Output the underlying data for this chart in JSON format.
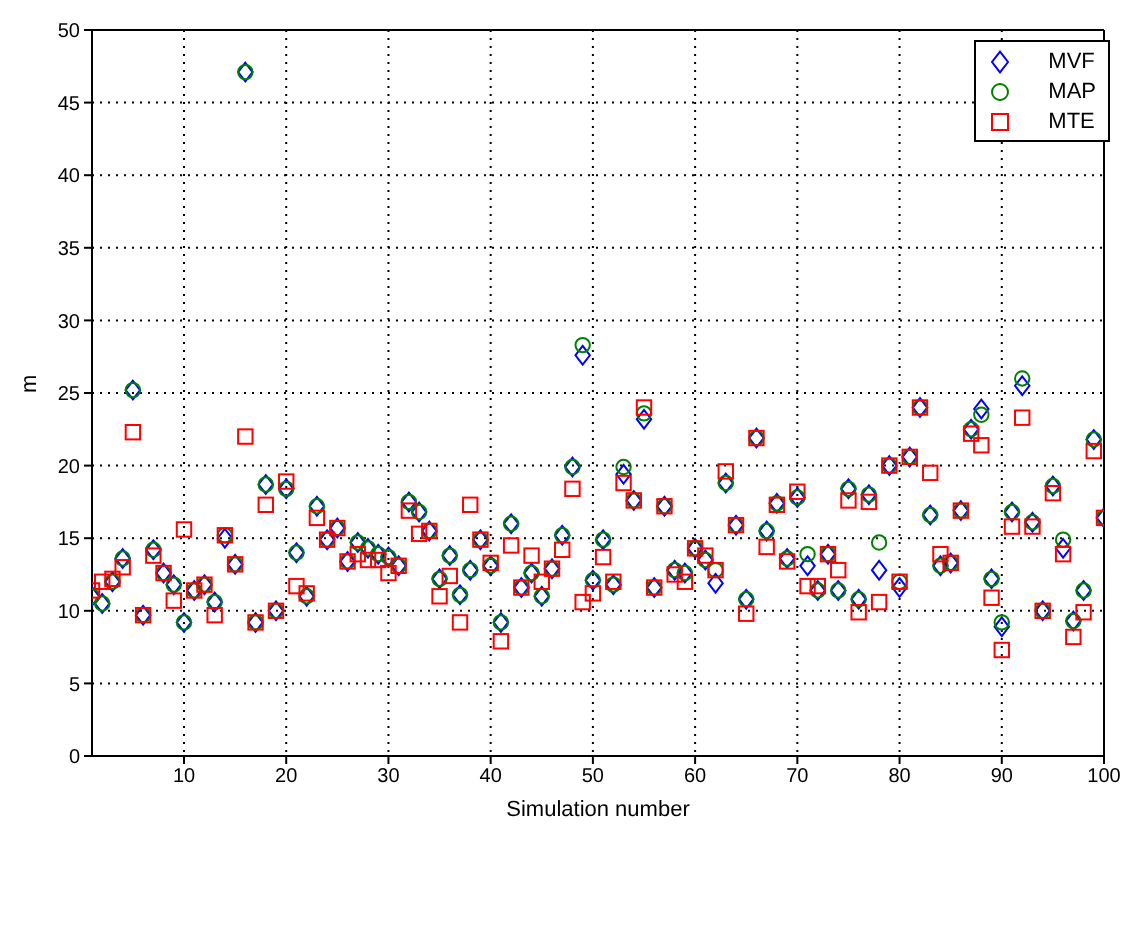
{
  "chart_data": {
    "type": "scatter",
    "xlabel": "Simulation number",
    "ylabel": "m",
    "x": [
      1,
      2,
      3,
      4,
      5,
      6,
      7,
      8,
      9,
      10,
      11,
      12,
      13,
      14,
      15,
      16,
      17,
      18,
      19,
      20,
      21,
      22,
      23,
      24,
      25,
      26,
      27,
      28,
      29,
      30,
      31,
      32,
      33,
      34,
      35,
      36,
      37,
      38,
      39,
      40,
      41,
      42,
      43,
      44,
      45,
      46,
      47,
      48,
      49,
      50,
      51,
      52,
      53,
      54,
      55,
      56,
      57,
      58,
      59,
      60,
      61,
      62,
      63,
      64,
      65,
      66,
      67,
      68,
      69,
      70,
      71,
      72,
      73,
      74,
      75,
      76,
      77,
      78,
      79,
      80,
      81,
      82,
      83,
      84,
      85,
      86,
      87,
      88,
      89,
      90,
      91,
      92,
      93,
      94,
      95,
      96,
      97,
      98,
      99,
      100
    ],
    "xlim": [
      1,
      100
    ],
    "xticks": [
      10,
      20,
      30,
      40,
      50,
      60,
      70,
      80,
      90,
      100
    ],
    "ylim": [
      0,
      50
    ],
    "yticks": [
      0,
      5,
      10,
      15,
      20,
      25,
      30,
      35,
      40,
      45,
      50
    ],
    "grid": true,
    "legend": "top right",
    "series": [
      {
        "name": "MVF",
        "color": "#0000ff",
        "marker": "diamond",
        "values": [
          11.0,
          10.5,
          12.0,
          13.6,
          25.2,
          9.7,
          14.2,
          12.6,
          11.8,
          9.2,
          11.4,
          11.8,
          10.6,
          15.0,
          13.2,
          47.1,
          9.2,
          18.7,
          10.0,
          18.4,
          14.0,
          11.0,
          17.2,
          14.9,
          15.7,
          13.4,
          14.7,
          14.3,
          13.9,
          13.7,
          13.1,
          17.5,
          16.8,
          15.5,
          12.2,
          13.8,
          11.1,
          12.8,
          14.9,
          13.1,
          9.2,
          16.0,
          11.6,
          12.6,
          11.0,
          12.9,
          15.2,
          19.9,
          27.6,
          12.1,
          14.9,
          11.8,
          19.4,
          17.6,
          23.2,
          11.6,
          17.2,
          12.8,
          12.6,
          14.3,
          13.5,
          11.9,
          18.8,
          15.9,
          10.8,
          21.9,
          15.5,
          17.4,
          13.6,
          17.8,
          13.1,
          11.4,
          13.9,
          11.4,
          18.4,
          10.8,
          18.0,
          12.8,
          20.0,
          11.6,
          20.6,
          24.0,
          16.6,
          13.1,
          13.3,
          16.9,
          22.5,
          23.9,
          12.2,
          8.9,
          16.8,
          25.5,
          16.1,
          10.0,
          18.6,
          14.3,
          9.3,
          11.4,
          21.8,
          16.4
        ]
      },
      {
        "name": "MAP",
        "color": "#008000",
        "marker": "circle",
        "values": [
          11.0,
          10.5,
          12.0,
          13.6,
          25.2,
          9.7,
          14.2,
          12.6,
          11.8,
          9.2,
          11.4,
          11.8,
          10.6,
          15.2,
          13.2,
          47.1,
          9.2,
          18.7,
          10.0,
          18.4,
          14.0,
          11.0,
          17.2,
          14.9,
          15.7,
          13.4,
          14.7,
          14.3,
          13.9,
          13.7,
          13.1,
          17.5,
          16.8,
          15.5,
          12.2,
          13.8,
          11.1,
          12.8,
          14.9,
          13.1,
          9.2,
          16.0,
          11.6,
          12.6,
          11.0,
          12.9,
          15.2,
          19.9,
          28.3,
          12.1,
          14.9,
          11.8,
          19.9,
          17.6,
          23.6,
          11.6,
          17.2,
          12.8,
          12.6,
          14.3,
          13.5,
          12.8,
          18.8,
          15.9,
          10.8,
          21.9,
          15.5,
          17.4,
          13.6,
          17.8,
          13.9,
          11.4,
          13.9,
          11.4,
          18.4,
          10.8,
          18.0,
          14.7,
          20.0,
          12.0,
          20.6,
          24.0,
          16.6,
          13.1,
          13.3,
          16.9,
          22.5,
          23.5,
          12.2,
          9.2,
          16.8,
          26.0,
          16.1,
          10.0,
          18.6,
          14.9,
          9.3,
          11.4,
          21.8,
          16.4
        ]
      },
      {
        "name": "MTE",
        "color": "#ff0000",
        "marker": "square",
        "values": [
          11.4,
          12.0,
          12.2,
          13.0,
          22.3,
          9.7,
          13.8,
          12.6,
          10.7,
          15.6,
          11.4,
          11.8,
          9.7,
          15.2,
          13.2,
          22.0,
          9.2,
          17.3,
          10.0,
          18.9,
          11.7,
          11.2,
          16.4,
          14.9,
          15.7,
          13.4,
          13.9,
          13.5,
          13.5,
          12.6,
          13.1,
          16.9,
          15.3,
          15.5,
          11.0,
          12.4,
          9.2,
          17.3,
          14.9,
          13.3,
          7.9,
          14.5,
          11.6,
          13.8,
          12.0,
          12.9,
          14.2,
          18.4,
          10.6,
          11.2,
          13.7,
          12.0,
          18.8,
          17.6,
          24.0,
          11.6,
          17.2,
          12.5,
          12.0,
          14.3,
          13.8,
          12.8,
          19.6,
          15.9,
          9.8,
          21.9,
          14.4,
          17.3,
          13.4,
          18.2,
          11.7,
          11.7,
          13.9,
          12.8,
          17.6,
          9.9,
          17.5,
          10.6,
          20.0,
          12.0,
          20.6,
          24.0,
          19.5,
          13.9,
          13.3,
          16.9,
          22.2,
          21.4,
          10.9,
          7.3,
          15.8,
          23.3,
          15.8,
          10.0,
          18.1,
          13.9,
          8.2,
          9.9,
          21.0,
          16.4
        ]
      }
    ]
  }
}
